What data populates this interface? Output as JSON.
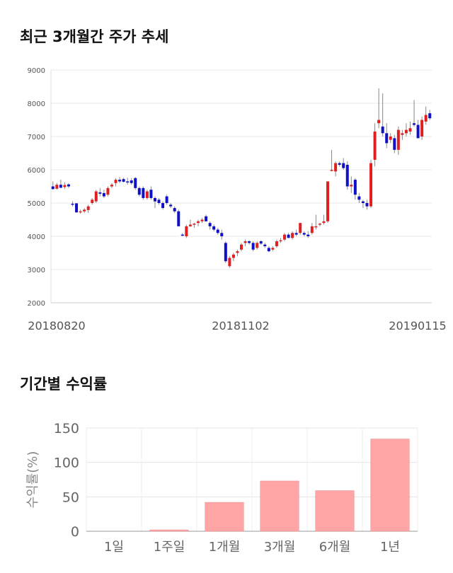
{
  "sections": {
    "price_title": "최근 3개월간 주가 추세",
    "return_title": "기간별 수익률"
  },
  "chart_data": [
    {
      "type": "candlestick",
      "title": "최근 3개월간 주가 추세",
      "ylim": [
        2000,
        9000
      ],
      "yticks": [
        2000,
        3000,
        4000,
        5000,
        6000,
        7000,
        8000,
        9000
      ],
      "x_labels": [
        "20180820",
        "20181102",
        "20190115"
      ],
      "grid": true,
      "colors": {
        "up": "#e02020",
        "down": "#1010c8",
        "wick": "#888888"
      },
      "candles": [
        {
          "o": 5500,
          "h": 5650,
          "l": 5400,
          "c": 5420
        },
        {
          "o": 5430,
          "h": 5600,
          "l": 5400,
          "c": 5550
        },
        {
          "o": 5550,
          "h": 5700,
          "l": 5450,
          "c": 5460
        },
        {
          "o": 5480,
          "h": 5620,
          "l": 5420,
          "c": 5540
        },
        {
          "o": 5560,
          "h": 5600,
          "l": 5450,
          "c": 5500
        },
        {
          "o": 4980,
          "h": 5050,
          "l": 4900,
          "c": 4960
        },
        {
          "o": 4990,
          "h": 5000,
          "l": 4700,
          "c": 4720
        },
        {
          "o": 4730,
          "h": 4800,
          "l": 4680,
          "c": 4750
        },
        {
          "o": 4750,
          "h": 4850,
          "l": 4700,
          "c": 4800
        },
        {
          "o": 4790,
          "h": 4950,
          "l": 4700,
          "c": 4900
        },
        {
          "o": 5000,
          "h": 5150,
          "l": 4950,
          "c": 5100
        },
        {
          "o": 5050,
          "h": 5400,
          "l": 5000,
          "c": 5350
        },
        {
          "o": 5320,
          "h": 5450,
          "l": 5200,
          "c": 5280
        },
        {
          "o": 5300,
          "h": 5400,
          "l": 5150,
          "c": 5200
        },
        {
          "o": 5250,
          "h": 5500,
          "l": 5200,
          "c": 5450
        },
        {
          "o": 5500,
          "h": 5600,
          "l": 5450,
          "c": 5550
        },
        {
          "o": 5600,
          "h": 5750,
          "l": 5500,
          "c": 5700
        },
        {
          "o": 5700,
          "h": 5780,
          "l": 5600,
          "c": 5650
        },
        {
          "o": 5720,
          "h": 5760,
          "l": 5620,
          "c": 5640
        },
        {
          "o": 5650,
          "h": 5760,
          "l": 5550,
          "c": 5620
        },
        {
          "o": 5680,
          "h": 5750,
          "l": 5550,
          "c": 5600
        },
        {
          "o": 5750,
          "h": 5780,
          "l": 5400,
          "c": 5450
        },
        {
          "o": 5450,
          "h": 5500,
          "l": 5200,
          "c": 5250
        },
        {
          "o": 5450,
          "h": 5500,
          "l": 5100,
          "c": 5150
        },
        {
          "o": 5150,
          "h": 5400,
          "l": 5100,
          "c": 5350
        },
        {
          "o": 5400,
          "h": 5500,
          "l": 5100,
          "c": 5150
        },
        {
          "o": 5150,
          "h": 5200,
          "l": 4850,
          "c": 5050
        },
        {
          "o": 5100,
          "h": 5150,
          "l": 4950,
          "c": 5000
        },
        {
          "o": 5000,
          "h": 5050,
          "l": 4800,
          "c": 4850
        },
        {
          "o": 5200,
          "h": 5250,
          "l": 4950,
          "c": 5000
        },
        {
          "o": 4950,
          "h": 5000,
          "l": 4850,
          "c": 4900
        },
        {
          "o": 4850,
          "h": 4900,
          "l": 4700,
          "c": 4750
        },
        {
          "o": 4750,
          "h": 4800,
          "l": 4300,
          "c": 4300
        },
        {
          "o": 4050,
          "h": 4100,
          "l": 4000,
          "c": 4030
        },
        {
          "o": 4000,
          "h": 4350,
          "l": 3950,
          "c": 4300
        },
        {
          "o": 4300,
          "h": 4500,
          "l": 4280,
          "c": 4350
        },
        {
          "o": 4350,
          "h": 4400,
          "l": 4250,
          "c": 4380
        },
        {
          "o": 4400,
          "h": 4500,
          "l": 4300,
          "c": 4450
        },
        {
          "o": 4450,
          "h": 4550,
          "l": 4400,
          "c": 4500
        },
        {
          "o": 4600,
          "h": 4650,
          "l": 4450,
          "c": 4450
        },
        {
          "o": 4400,
          "h": 4450,
          "l": 4200,
          "c": 4300
        },
        {
          "o": 4300,
          "h": 4350,
          "l": 4150,
          "c": 4200
        },
        {
          "o": 4200,
          "h": 4250,
          "l": 4050,
          "c": 4100
        },
        {
          "o": 4100,
          "h": 4200,
          "l": 3900,
          "c": 4000
        },
        {
          "o": 3800,
          "h": 3850,
          "l": 3200,
          "c": 3250
        },
        {
          "o": 3100,
          "h": 3400,
          "l": 3050,
          "c": 3350
        },
        {
          "o": 3350,
          "h": 3500,
          "l": 3250,
          "c": 3450
        },
        {
          "o": 3500,
          "h": 3600,
          "l": 3400,
          "c": 3550
        },
        {
          "o": 3600,
          "h": 3800,
          "l": 3550,
          "c": 3750
        },
        {
          "o": 3800,
          "h": 3900,
          "l": 3700,
          "c": 3850
        },
        {
          "o": 3850,
          "h": 3880,
          "l": 3750,
          "c": 3800
        },
        {
          "o": 3800,
          "h": 3850,
          "l": 3550,
          "c": 3600
        },
        {
          "o": 3650,
          "h": 3850,
          "l": 3600,
          "c": 3800
        },
        {
          "o": 3850,
          "h": 3880,
          "l": 3750,
          "c": 3780
        },
        {
          "o": 3750,
          "h": 3800,
          "l": 3650,
          "c": 3700
        },
        {
          "o": 3650,
          "h": 3700,
          "l": 3520,
          "c": 3550
        },
        {
          "o": 3600,
          "h": 3700,
          "l": 3550,
          "c": 3650
        },
        {
          "o": 3700,
          "h": 3900,
          "l": 3650,
          "c": 3850
        },
        {
          "o": 3850,
          "h": 3950,
          "l": 3800,
          "c": 3880
        },
        {
          "o": 3900,
          "h": 4100,
          "l": 3850,
          "c": 4050
        },
        {
          "o": 4050,
          "h": 4100,
          "l": 3950,
          "c": 3950
        },
        {
          "o": 3950,
          "h": 4150,
          "l": 3900,
          "c": 4100
        },
        {
          "o": 4100,
          "h": 4200,
          "l": 4000,
          "c": 4050
        },
        {
          "o": 4100,
          "h": 4400,
          "l": 4050,
          "c": 4400
        },
        {
          "o": 4100,
          "h": 4150,
          "l": 4000,
          "c": 4050
        },
        {
          "o": 4050,
          "h": 4150,
          "l": 3950,
          "c": 4000
        },
        {
          "o": 4100,
          "h": 4400,
          "l": 4050,
          "c": 4300
        },
        {
          "o": 4300,
          "h": 4650,
          "l": 4200,
          "c": 4300
        },
        {
          "o": 4350,
          "h": 4400,
          "l": 4300,
          "c": 4380
        },
        {
          "o": 4400,
          "h": 4650,
          "l": 4350,
          "c": 4450
        },
        {
          "o": 4450,
          "h": 5650,
          "l": 4400,
          "c": 5650
        },
        {
          "o": 6000,
          "h": 6600,
          "l": 5950,
          "c": 6000
        },
        {
          "o": 5950,
          "h": 6250,
          "l": 5800,
          "c": 6200
        },
        {
          "o": 6200,
          "h": 6250,
          "l": 6100,
          "c": 6150
        },
        {
          "o": 6200,
          "h": 6350,
          "l": 6000,
          "c": 6050
        },
        {
          "o": 6150,
          "h": 6250,
          "l": 5400,
          "c": 5500
        },
        {
          "o": 5500,
          "h": 5800,
          "l": 5300,
          "c": 5550
        },
        {
          "o": 5700,
          "h": 5750,
          "l": 5100,
          "c": 5250
        },
        {
          "o": 5200,
          "h": 5300,
          "l": 5000,
          "c": 5100
        },
        {
          "o": 5050,
          "h": 5100,
          "l": 4850,
          "c": 5000
        },
        {
          "o": 5000,
          "h": 5100,
          "l": 4800,
          "c": 4900
        },
        {
          "o": 4900,
          "h": 6300,
          "l": 4850,
          "c": 6200
        },
        {
          "o": 6300,
          "h": 7400,
          "l": 6100,
          "c": 7150
        },
        {
          "o": 7400,
          "h": 8450,
          "l": 7250,
          "c": 7500
        },
        {
          "o": 7300,
          "h": 8300,
          "l": 7000,
          "c": 7100
        },
        {
          "o": 7100,
          "h": 7400,
          "l": 6650,
          "c": 6800
        },
        {
          "o": 6900,
          "h": 7100,
          "l": 6800,
          "c": 7000
        },
        {
          "o": 6950,
          "h": 7050,
          "l": 6500,
          "c": 6600
        },
        {
          "o": 6600,
          "h": 7300,
          "l": 6450,
          "c": 7200
        },
        {
          "o": 7050,
          "h": 7200,
          "l": 6900,
          "c": 7100
        },
        {
          "o": 7100,
          "h": 7400,
          "l": 7000,
          "c": 7200
        },
        {
          "o": 7150,
          "h": 7450,
          "l": 7050,
          "c": 7250
        },
        {
          "o": 7400,
          "h": 8100,
          "l": 7300,
          "c": 7350
        },
        {
          "o": 7350,
          "h": 7500,
          "l": 6950,
          "c": 6950
        },
        {
          "o": 7000,
          "h": 7600,
          "l": 6900,
          "c": 7500
        },
        {
          "o": 7450,
          "h": 7900,
          "l": 7350,
          "c": 7650
        },
        {
          "o": 7700,
          "h": 7800,
          "l": 7500,
          "c": 7550
        }
      ]
    },
    {
      "type": "bar",
      "title": "기간별 수익률",
      "ylabel": "수익률(%)",
      "categories": [
        "1일",
        "1주일",
        "1개월",
        "3개월",
        "6개월",
        "1년"
      ],
      "values": [
        0,
        2,
        42,
        73,
        59,
        134
      ],
      "ylim": [
        0,
        150
      ],
      "yticks": [
        0,
        50,
        100,
        150
      ],
      "bar_color": "#ffa5a5",
      "grid": true
    }
  ]
}
